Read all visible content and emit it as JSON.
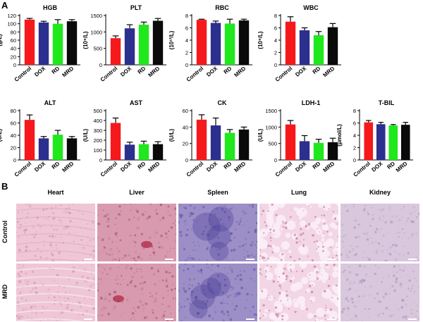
{
  "figure": {
    "panel_a_letter": "A",
    "panel_b_letter": "B"
  },
  "colors": {
    "Control": "#f5191c",
    "DOX": "#2b2f8e",
    "RD": "#1fe81c",
    "MRD": "#0a0a0a",
    "error": "#000000"
  },
  "chart_data": [
    {
      "type": "bar",
      "title": "HGB",
      "ylabel": "(g/L)",
      "ylim": [
        0,
        120
      ],
      "yticks": [
        0,
        20,
        40,
        60,
        80,
        100,
        120
      ],
      "categories": [
        "Control",
        "DOX",
        "RD",
        "MRD"
      ],
      "values": [
        110,
        103,
        100,
        106
      ],
      "errors": [
        3,
        3,
        10,
        4
      ]
    },
    {
      "type": "bar",
      "title": "PLT",
      "ylabel": "(10⁹/L)",
      "ylim": [
        0,
        1500
      ],
      "yticks": [
        0,
        500,
        1000,
        1500
      ],
      "categories": [
        "Control",
        "DOX",
        "RD",
        "MRD"
      ],
      "values": [
        810,
        1110,
        1220,
        1340
      ],
      "errors": [
        70,
        110,
        80,
        70
      ]
    },
    {
      "type": "bar",
      "title": "RBC",
      "ylabel": "(10¹²/L)",
      "ylim": [
        0,
        8
      ],
      "yticks": [
        0,
        2,
        4,
        6,
        8
      ],
      "categories": [
        "Control",
        "DOX",
        "RD",
        "MRD"
      ],
      "values": [
        7.3,
        6.8,
        6.7,
        7.2
      ],
      "errors": [
        0.1,
        0.3,
        0.7,
        0.2
      ]
    },
    {
      "type": "bar",
      "title": "WBC",
      "ylabel": "(10⁹/L)",
      "ylim": [
        0,
        8
      ],
      "yticks": [
        0,
        2,
        4,
        6,
        8
      ],
      "categories": [
        "Control",
        "DOX",
        "RD",
        "MRD"
      ],
      "values": [
        7.0,
        5.6,
        4.8,
        6.1
      ],
      "errors": [
        0.8,
        0.4,
        0.6,
        0.6
      ]
    },
    {
      "type": "bar",
      "title": "ALT",
      "ylabel": "(U/L)",
      "ylim": [
        0,
        80
      ],
      "yticks": [
        0,
        20,
        40,
        60,
        80
      ],
      "categories": [
        "Control",
        "DOX",
        "RD",
        "MRD"
      ],
      "values": [
        65,
        35,
        41,
        35
      ],
      "errors": [
        8,
        3,
        7,
        3
      ]
    },
    {
      "type": "bar",
      "title": "AST",
      "ylabel": "(U/L)",
      "ylim": [
        0,
        500
      ],
      "yticks": [
        0,
        100,
        200,
        300,
        400,
        500
      ],
      "categories": [
        "Control",
        "DOX",
        "RD",
        "MRD"
      ],
      "values": [
        375,
        155,
        160,
        160
      ],
      "errors": [
        50,
        25,
        30,
        25
      ]
    },
    {
      "type": "bar",
      "title": "CK",
      "ylabel": "(U/L)",
      "ylim": [
        0,
        60
      ],
      "yticks": [
        0,
        20,
        40,
        60
      ],
      "categories": [
        "Control",
        "DOX",
        "RD",
        "MRD"
      ],
      "values": [
        49,
        42,
        33,
        37
      ],
      "errors": [
        6,
        9,
        4,
        3
      ]
    },
    {
      "type": "bar",
      "title": "LDH-1",
      "ylabel": "(U/L)",
      "ylim": [
        0,
        1500
      ],
      "yticks": [
        0,
        500,
        1000,
        1500
      ],
      "categories": [
        "Control",
        "DOX",
        "RD",
        "MRD"
      ],
      "values": [
        1080,
        570,
        520,
        540
      ],
      "errors": [
        120,
        170,
        110,
        120
      ]
    },
    {
      "type": "bar",
      "title": "T-BIL",
      "ylabel": "(μmol/L)",
      "ylim": [
        0,
        8
      ],
      "yticks": [
        0,
        2,
        4,
        6,
        8
      ],
      "categories": [
        "Control",
        "DOX",
        "RD",
        "MRD"
      ],
      "values": [
        6.1,
        5.8,
        5.6,
        5.7
      ],
      "errors": [
        0.3,
        0.3,
        0.15,
        0.4
      ]
    }
  ],
  "histology": {
    "columns": [
      "Heart",
      "Liver",
      "Spleen",
      "Lung",
      "Kidney"
    ],
    "rows": [
      "Control",
      "MRD"
    ],
    "tissue_colors": {
      "Heart": {
        "base": "#efc6d6",
        "accent": "#e3a9bf",
        "dark": "#c98aa5"
      },
      "Liver": {
        "base": "#d89aae",
        "accent": "#c57a93",
        "dark": "#a14a66"
      },
      "Spleen": {
        "base": "#9c8ec6",
        "accent": "#7b6cb4",
        "dark": "#5a4ea0"
      },
      "Lung": {
        "base": "#f3d6e6",
        "accent": "#d58fb2",
        "dark": "#b96c93"
      },
      "Kidney": {
        "base": "#d9c7dd",
        "accent": "#c5aecd",
        "dark": "#a88fb3"
      }
    }
  }
}
